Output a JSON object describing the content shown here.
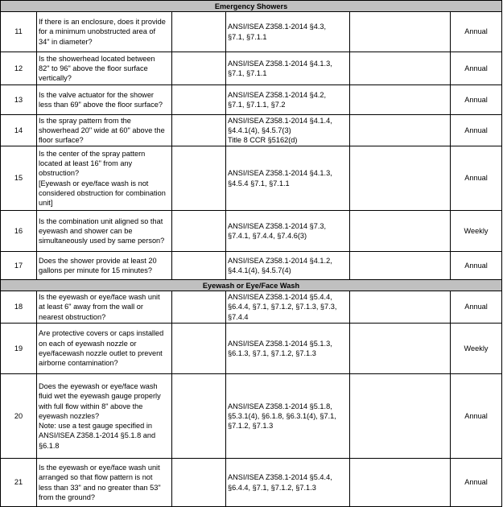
{
  "sections": [
    {
      "title": "Emergency Showers",
      "rows": [
        {
          "num": "11",
          "question": "If there is an enclosure, does it provide\nfor a minimum unobstructed area of\n34\" in diameter?",
          "reference": "ANSI/ISEA Z358.1-2014 §4.3,\n§7.1, §7.1.1",
          "frequency": "Annual"
        },
        {
          "num": "12",
          "question": "Is the showerhead located between\n82\" to 96\" above the floor surface\nvertically?",
          "reference": "ANSI/ISEA Z358.1-2014 §4.1.3,\n§7.1, §7.1.1",
          "frequency": "Annual"
        },
        {
          "num": "13",
          "question": "Is the valve actuator for the shower\nless than 69\" above the floor surface?",
          "reference": "ANSI/ISEA Z358.1-2014 §4.2,\n§7.1, §7.1.1, §7.2",
          "frequency": "Annual"
        },
        {
          "num": "14",
          "question": "Is the spray pattern from the\nshowerhead 20\" wide at 60\" above the\nfloor surface?",
          "reference": "ANSI/ISEA Z358.1-2014 §4.1.4,\n§4.4.1(4), §4.5.7(3)\nTitle 8 CCR §5162(d)",
          "frequency": "Annual"
        },
        {
          "num": "15",
          "question": "Is the center of the spray pattern\nlocated at least 16\" from any\nobstruction?\n[Eyewash or eye/face wash is not\nconsidered obstruction for combination\nunit]",
          "reference": "ANSI/ISEA Z358.1-2014 §4.1.3,\n§4.5.4 §7.1, §7.1.1",
          "frequency": "Annual"
        },
        {
          "num": "16",
          "question": "Is the combination unit aligned so that\neyewash and shower can be\nsimultaneously used by same person?",
          "reference": "ANSI/ISEA Z358.1-2014 §7.3,\n§7.4.1, §7.4.4, §7.4.6(3)",
          "frequency": "Weekly"
        },
        {
          "num": "17",
          "question": "Does the shower provide at least 20\ngallons per minute for 15 minutes?",
          "reference": "ANSI/ISEA Z358.1-2014 §4.1.2,\n§4.4.1(4), §4.5.7(4)",
          "frequency": "Annual"
        }
      ]
    },
    {
      "title": "Eyewash or Eye/Face Wash",
      "rows": [
        {
          "num": "18",
          "question": "Is the eyewash or eye/face wash unit\nat least 6\" away from the wall or\nnearest obstruction?",
          "reference": "ANSI/ISEA Z358.1-2014 §5.4.4,\n§6.4.4, §7.1, §7.1.2, §7.1.3, §7.3,\n§7.4.4",
          "frequency": "Annual"
        },
        {
          "num": "19",
          "question": "Are protective covers or caps installed\non each of eyewash nozzle or\neye/facewash nozzle outlet to prevent\nairborne contamination?",
          "reference": "ANSI/ISEA Z358.1-2014 §5.1.3,\n§6.1.3, §7.1, §7.1.2, §7.1.3",
          "frequency": "Weekly"
        },
        {
          "num": "20",
          "question": "Does the eyewash or eye/face wash\nfluid wet the eyewash gauge properly\nwith full flow within 8\" above the\neyewash nozzles?\nNote: use a test gauge specified in\nANSI/ISEA Z358.1-2014 §5.1.8 and\n§6.1.8",
          "reference": "ANSI/ISEA Z358.1-2014 §5.1.8,\n§5.3.1(4), §6.1.8, §6.3.1(4), §7.1,\n§7.1.2, §7.1.3",
          "frequency": "Annual"
        },
        {
          "num": "21",
          "question": "Is the eyewash or eye/face wash unit\narranged so that flow pattern is not\nless than 33\" and no greater than 53\"\nfrom the ground?",
          "reference": "ANSI/ISEA Z358.1-2014 §5.4.4,\n§6.4.4, §7.1, §7.1.2, §7.1.3",
          "frequency": "Annual"
        }
      ]
    }
  ]
}
